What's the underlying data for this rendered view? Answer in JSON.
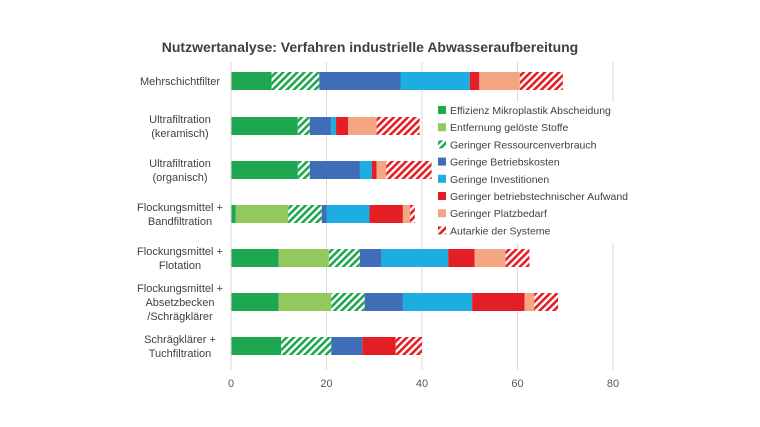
{
  "chart_data": {
    "type": "bar",
    "orientation": "horizontal",
    "stacked": true,
    "title": "Nutzwertanalyse: Verfahren industrielle Abwasseraufbereitung",
    "xlim": [
      0,
      80
    ],
    "x_ticks": [
      "0",
      "20",
      "40",
      "60",
      "80"
    ],
    "grid": "vertical",
    "legend_position": "inside-right",
    "categories": [
      [
        "Mehrschichtfilter"
      ],
      [
        "Ultrafiltration",
        "(keramisch)"
      ],
      [
        "Ultrafiltration",
        "(organisch)"
      ],
      [
        "Flockungsmittel +",
        "Bandfiltration"
      ],
      [
        "Flockungsmittel +",
        "Flotation"
      ],
      [
        "Flockungsmittel +",
        "Absetzbecken",
        "/Schrägklärer"
      ],
      [
        "Schrägklärer +",
        "Tuchfiltration"
      ]
    ],
    "series": [
      {
        "name": "Effizienz Mikroplastik Abscheidung",
        "color": "#1FA650",
        "hatched": false,
        "values": [
          8.5,
          14,
          14,
          1,
          10,
          10,
          10.5
        ]
      },
      {
        "name": "Entfernung gelöste Stoffe",
        "color": "#92C95C",
        "hatched": false,
        "values": [
          0,
          0,
          0,
          11,
          10.5,
          11,
          0
        ]
      },
      {
        "name": "Geringer Ressourcenverbrauch",
        "color": "#1FA650",
        "hatched": true,
        "values": [
          10,
          2.5,
          2.5,
          7,
          6.5,
          7,
          10.5
        ]
      },
      {
        "name": "Geringe Betriebskosten",
        "color": "#3F6DB7",
        "hatched": false,
        "values": [
          17,
          4.5,
          10.5,
          1,
          4.5,
          8,
          6.5
        ]
      },
      {
        "name": "Geringe Investitionen",
        "color": "#1EADE0",
        "hatched": false,
        "values": [
          14.5,
          1,
          2.5,
          9,
          14,
          14.5,
          0
        ]
      },
      {
        "name": "Geringer betriebstechnischer Aufwand",
        "color": "#E31E24",
        "hatched": false,
        "values": [
          2,
          2.5,
          1,
          7,
          5.5,
          11,
          7
        ]
      },
      {
        "name": "Geringer Platzbedarf",
        "color": "#F4A582",
        "hatched": false,
        "values": [
          8.5,
          6,
          2,
          1.5,
          6.5,
          2,
          0
        ]
      },
      {
        "name": "Autarkie der Systeme",
        "color": "#E31E24",
        "hatched": true,
        "values": [
          9,
          9,
          9.5,
          1,
          5,
          5,
          5.5
        ]
      }
    ]
  }
}
